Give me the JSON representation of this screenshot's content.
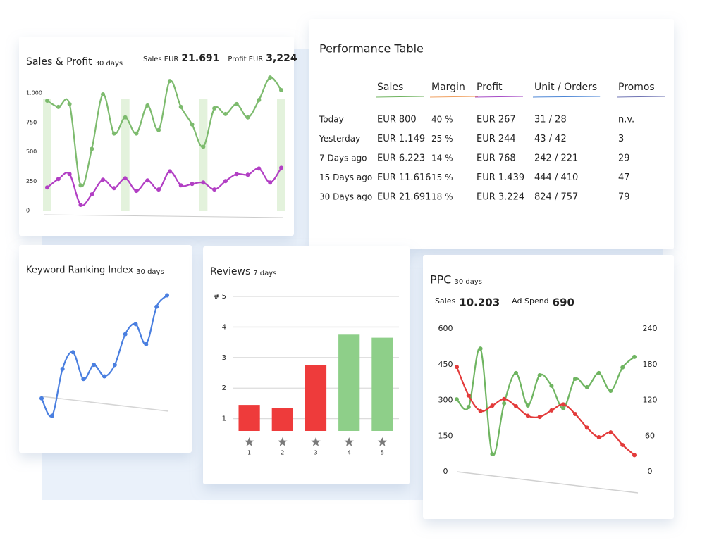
{
  "chart_data": [
    {
      "type": "line",
      "title": "Sales & Profit",
      "subtitle": "30 days",
      "categories": [
        null,
        null,
        null,
        null,
        null,
        null,
        null,
        null,
        null,
        null,
        null,
        null,
        null,
        null,
        null,
        null,
        null,
        null,
        null,
        null,
        null,
        null
      ],
      "series": [
        {
          "name": "Sales EUR",
          "total": "21.691",
          "color": "#7dbb6e",
          "values": [
            934,
            881,
            905,
            214,
            524,
            988,
            655,
            792,
            655,
            893,
            685,
            1101,
            881,
            732,
            542,
            869,
            821,
            905,
            792,
            940,
            1131,
            1024
          ]
        },
        {
          "name": "Profit EUR",
          "total": "3,224",
          "color": "#b23fc4",
          "values": [
            196,
            268,
            310,
            48,
            137,
            262,
            190,
            274,
            167,
            256,
            179,
            333,
            214,
            226,
            238,
            179,
            250,
            310,
            304,
            357,
            238,
            363
          ]
        }
      ],
      "ylim": [
        0,
        1150
      ],
      "yticks": [
        0,
        250,
        500,
        750,
        {
          "value": 1000,
          "label": "1.000"
        }
      ]
    },
    {
      "type": "line",
      "title": "Keyword Ranking Index",
      "subtitle": "30 days",
      "color": "#4a7fe0",
      "values": [
        18,
        5,
        40,
        52.5,
        32.5,
        43,
        34.5,
        43,
        66,
        73.5,
        58.5,
        86.5,
        95
      ],
      "ylim": [
        0,
        100
      ]
    },
    {
      "type": "bar",
      "title": "Reviews",
      "subtitle": "7 days",
      "categories": [
        "1",
        "2",
        "3",
        "4",
        "5"
      ],
      "values": [
        1.45,
        1.35,
        2.75,
        3.75,
        3.65
      ],
      "colors": [
        "#ee3b3b",
        "#ee3b3b",
        "#ee3b3b",
        "#8ecf89",
        "#8ecf89"
      ],
      "ylim": [
        0.6,
        5.3
      ],
      "yticks": [
        1,
        2,
        3,
        4,
        {
          "value": 5,
          "label": "# 5"
        }
      ],
      "grid": true
    },
    {
      "type": "line",
      "title": "PPC",
      "subtitle": "30 days",
      "categories": [
        null,
        null,
        null,
        null,
        null,
        null,
        null,
        null,
        null,
        null,
        null,
        null,
        null,
        null,
        null,
        null
      ],
      "series": [
        {
          "name": "Sales",
          "total": "10.203",
          "color": "#6fb561",
          "values": [
            304,
            272,
            517,
            74,
            287,
            414,
            278,
            405,
            361,
            266,
            390,
            355,
            414,
            340,
            438,
            482
          ]
        },
        {
          "name": "Ad Spend",
          "total": "690",
          "color": "#e33b3b",
          "axis": "y2",
          "values": [
            176,
            128,
            102,
            111,
            122,
            110,
            94,
            92,
            103,
            113,
            97,
            74,
            58,
            66,
            45,
            28
          ]
        }
      ],
      "ylim": [
        0,
        600
      ],
      "yticks": [
        0,
        150,
        300,
        450,
        600
      ],
      "y2lim": [
        0,
        240
      ],
      "y2ticks": [
        0,
        60,
        120,
        180,
        240
      ]
    }
  ],
  "table": {
    "title": "Performance Table",
    "headers": [
      "Sales",
      "Margin",
      "Profit",
      "Unit / Orders",
      "Promos"
    ],
    "header_colors": [
      "#6fb35f",
      "#f0a060",
      "#a64bc6",
      "#4c86d6",
      "#6f74b4"
    ],
    "rows": [
      [
        "Today",
        "EUR 800",
        "40 %",
        "EUR 267",
        "31 / 28",
        "n.v."
      ],
      [
        "Yesterday",
        "EUR 1.149",
        "25 %",
        "EUR 244",
        "43 / 42",
        "3"
      ],
      [
        "7 Days ago",
        "EUR 6.223",
        "14 %",
        "EUR 768",
        "242 / 221",
        "29"
      ],
      [
        "15 Days ago",
        "EUR 11.616",
        "15 %",
        "EUR 1.439",
        "444 / 410",
        "47"
      ],
      [
        "30 Days ago",
        "EUR 21.691",
        "18 %",
        "EUR 3.224",
        "824 / 757",
        "79"
      ]
    ]
  }
}
